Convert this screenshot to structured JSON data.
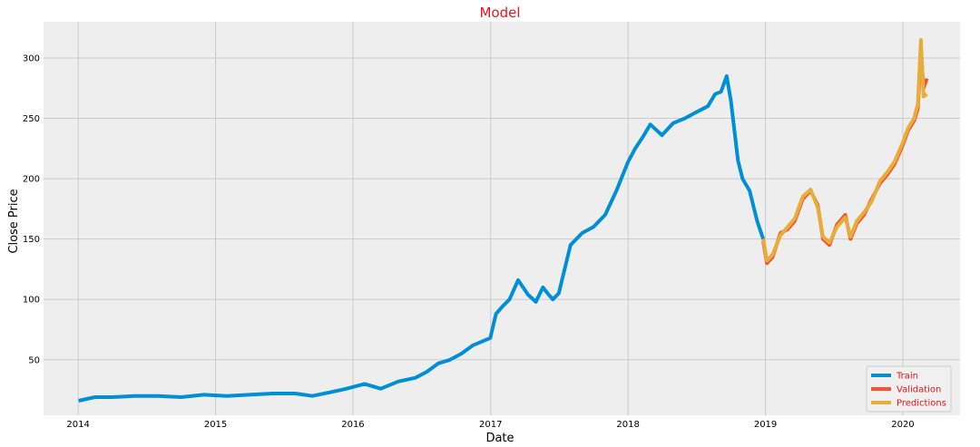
{
  "chart_data": {
    "type": "line",
    "title": "Model",
    "xlabel": "Date",
    "ylabel": "Close Price",
    "x_ticks": [
      "2014",
      "2015",
      "2016",
      "2017",
      "2018",
      "2019",
      "2020"
    ],
    "y_ticks": [
      50,
      100,
      150,
      200,
      250,
      300
    ],
    "xlim": [
      "2013-10-01",
      "2020-06-01"
    ],
    "ylim": [
      4,
      330
    ],
    "grid": true,
    "legend_position": "bottom-right",
    "colors": {
      "Train": "#008fd5",
      "Validation": "#fc4f30",
      "Predictions": "#e5ae38",
      "title": "#e8141c",
      "background": "#eeeeee",
      "grid": "#cbcbcb"
    },
    "series": [
      {
        "name": "Train",
        "x": [
          "2014-01-02",
          "2014-02-15",
          "2014-04-01",
          "2014-06-01",
          "2014-08-01",
          "2014-10-01",
          "2014-12-01",
          "2015-02-01",
          "2015-04-01",
          "2015-06-01",
          "2015-08-01",
          "2015-09-15",
          "2015-11-01",
          "2015-12-15",
          "2016-02-01",
          "2016-03-15",
          "2016-05-01",
          "2016-06-15",
          "2016-07-15",
          "2016-08-15",
          "2016-09-15",
          "2016-10-15",
          "2016-11-15",
          "2016-12-31",
          "2017-01-15",
          "2017-02-01",
          "2017-02-20",
          "2017-03-15",
          "2017-04-10",
          "2017-05-01",
          "2017-05-20",
          "2017-06-01",
          "2017-06-15",
          "2017-07-01",
          "2017-08-01",
          "2017-09-01",
          "2017-10-01",
          "2017-11-01",
          "2017-12-01",
          "2018-01-01",
          "2018-01-20",
          "2018-02-10",
          "2018-03-01",
          "2018-04-01",
          "2018-05-01",
          "2018-06-01",
          "2018-07-01",
          "2018-08-01",
          "2018-08-20",
          "2018-09-05",
          "2018-09-20",
          "2018-10-01",
          "2018-10-20",
          "2018-11-01",
          "2018-11-20",
          "2018-12-10",
          "2018-12-26"
        ],
        "y": [
          16,
          19,
          19,
          20,
          20,
          19,
          21,
          20,
          21,
          22,
          22,
          20,
          23,
          26,
          30,
          26,
          32,
          35,
          40,
          47,
          50,
          55,
          62,
          68,
          88,
          94,
          100,
          116,
          104,
          98,
          110,
          105,
          100,
          105,
          145,
          155,
          160,
          170,
          190,
          214,
          225,
          235,
          245,
          236,
          246,
          250,
          255,
          260,
          270,
          272,
          285,
          265,
          215,
          200,
          190,
          165,
          150
        ]
      },
      {
        "name": "Validation",
        "x": [
          "2018-12-26",
          "2019-01-05",
          "2019-01-20",
          "2019-02-10",
          "2019-03-01",
          "2019-03-20",
          "2019-04-10",
          "2019-05-01",
          "2019-05-20",
          "2019-06-03",
          "2019-06-20",
          "2019-07-10",
          "2019-08-01",
          "2019-08-15",
          "2019-09-01",
          "2019-09-20",
          "2019-10-10",
          "2019-11-01",
          "2019-11-20",
          "2019-12-10",
          "2020-01-01",
          "2020-01-15",
          "2020-01-31",
          "2020-02-10",
          "2020-02-18",
          "2020-02-25",
          "2020-03-05"
        ],
        "y": [
          148,
          130,
          135,
          155,
          158,
          165,
          183,
          190,
          178,
          150,
          145,
          162,
          170,
          150,
          163,
          170,
          183,
          196,
          203,
          212,
          228,
          240,
          248,
          258,
          305,
          275,
          283
        ]
      },
      {
        "name": "Predictions",
        "x": [
          "2018-12-26",
          "2019-01-05",
          "2019-01-20",
          "2019-02-10",
          "2019-03-01",
          "2019-03-20",
          "2019-04-10",
          "2019-05-01",
          "2019-05-20",
          "2019-06-03",
          "2019-06-20",
          "2019-07-10",
          "2019-08-01",
          "2019-08-15",
          "2019-09-01",
          "2019-09-20",
          "2019-10-10",
          "2019-11-01",
          "2019-11-20",
          "2019-12-10",
          "2020-01-01",
          "2020-01-15",
          "2020-01-31",
          "2020-02-10",
          "2020-02-18",
          "2020-02-25",
          "2020-03-05"
        ],
        "y": [
          150,
          132,
          137,
          153,
          160,
          167,
          185,
          191,
          176,
          152,
          147,
          160,
          168,
          152,
          165,
          172,
          181,
          198,
          205,
          214,
          230,
          242,
          250,
          262,
          315,
          268,
          270
        ]
      }
    ]
  }
}
